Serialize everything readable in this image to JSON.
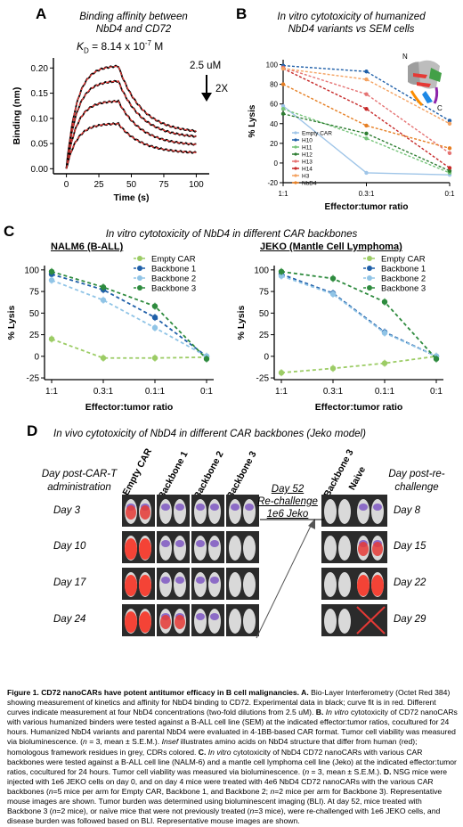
{
  "panelA": {
    "label": "A",
    "title_line1": "Binding affinity between",
    "title_line2": "NbD4 and CD72",
    "kd_text": "K",
    "kd_sub": "D",
    "kd_value": " = 8.14 x 10",
    "kd_exp": "-7",
    "kd_unit": " M",
    "conc_top": "2.5 uM",
    "conc_dil": "2X",
    "colors": {
      "data": "#000000",
      "fit": "#e53935"
    }
  },
  "panelB": {
    "label": "B",
    "title_line1": "In vitro cytotoxicity of humanized",
    "title_line2": "NbD4 variants vs SEM cells",
    "inset_n": "N",
    "inset_c": "C"
  },
  "panelC": {
    "label": "C",
    "title": "In vitro cytotoxicity of NbD4 in different CAR backbones",
    "left_subtitle": "NALM6 (B-ALL)",
    "right_subtitle": "JEKO (Mantle Cell Lymphoma)"
  },
  "panelD": {
    "label": "D",
    "title": "In vivo cytotoxicity of NbD4 in different CAR backbones (Jeko model)",
    "left_header_line1": "Day post-CAR-T",
    "left_header_line2": "administration",
    "right_header_line1": "Day post-re-",
    "right_header_line2": "challenge",
    "columns": [
      "Empty CAR",
      "Backbone 1",
      "Backbone 2",
      "Backbone 3"
    ],
    "rechallenge_columns": [
      "Backbone 3",
      "Naive"
    ],
    "days": [
      "Day 3",
      "Day 10",
      "Day 17",
      "Day 24"
    ],
    "rechallenge_days": [
      "Day 8",
      "Day 15",
      "Day 22",
      "Day 29"
    ],
    "arrow_line1": "Day 52",
    "arrow_line2": "Re-challenge",
    "arrow_line3": "1e6 Jeko"
  },
  "chart_data": [
    {
      "type": "line",
      "panel": "A",
      "xlabel": "Time (s)",
      "ylabel": "Binding (nm)",
      "xlim": [
        -10,
        110
      ],
      "ylim": [
        -0.01,
        0.22
      ],
      "xticks": [
        0,
        25,
        50,
        75,
        100
      ],
      "yticks": [
        0.0,
        0.05,
        0.1,
        0.15,
        0.2
      ],
      "yticklabels": [
        "0.00",
        "0.05",
        "0.10",
        "0.15",
        "0.20"
      ],
      "association_end": 40,
      "series": [
        {
          "plateau": 0.205,
          "end": 0.07
        },
        {
          "plateau": 0.175,
          "end": 0.06
        },
        {
          "plateau": 0.135,
          "end": 0.045
        },
        {
          "plateau": 0.09,
          "end": 0.03
        }
      ]
    },
    {
      "type": "line",
      "panel": "B",
      "xlabel": "Effector:tumor ratio",
      "ylabel": "% Lysis",
      "categories": [
        "1:1",
        "0.3:1",
        "0:1"
      ],
      "yticks": [
        -20,
        0,
        20,
        40,
        60,
        80,
        100
      ],
      "ylim": [
        -20,
        105
      ],
      "series": [
        {
          "name": "Empty CAR",
          "color": "#9fc5e8",
          "values": [
            58,
            -10,
            -12
          ]
        },
        {
          "name": "H10",
          "color": "#1f5fa8",
          "values": [
            99,
            93,
            43
          ]
        },
        {
          "name": "H11",
          "color": "#76c47a",
          "values": [
            55,
            25,
            -10
          ]
        },
        {
          "name": "H12",
          "color": "#2e7d32",
          "values": [
            50,
            30,
            -8
          ]
        },
        {
          "name": "H13",
          "color": "#e57373",
          "values": [
            97,
            70,
            10
          ]
        },
        {
          "name": "H14",
          "color": "#c62828",
          "values": [
            96,
            55,
            -5
          ]
        },
        {
          "name": "H3",
          "color": "#f4a261",
          "values": [
            96,
            85,
            40
          ]
        },
        {
          "name": "NbD4",
          "color": "#e67e22",
          "values": [
            80,
            38,
            15
          ]
        }
      ]
    },
    {
      "type": "line",
      "panel": "C-left",
      "xlabel": "Effector:tumor ratio",
      "ylabel": "% Lysis",
      "categories": [
        "1:1",
        "0.3:1",
        "0.1:1",
        "0:1"
      ],
      "yticks": [
        -25,
        0,
        25,
        50,
        75,
        100
      ],
      "ylim": [
        -27,
        105
      ],
      "series": [
        {
          "name": "Empty CAR",
          "color": "#9ccc65",
          "values": [
            20,
            -2,
            -2,
            -1
          ]
        },
        {
          "name": "Backbone 1",
          "color": "#1f5fa8",
          "values": [
            95,
            77,
            45,
            0
          ]
        },
        {
          "name": "Backbone 2",
          "color": "#90c4e6",
          "values": [
            88,
            65,
            33,
            0
          ]
        },
        {
          "name": "Backbone 3",
          "color": "#2e8b3e",
          "values": [
            98,
            80,
            58,
            -3
          ]
        }
      ]
    },
    {
      "type": "line",
      "panel": "C-right",
      "xlabel": "Effector:tumor ratio",
      "ylabel": "% Lysis",
      "categories": [
        "1:1",
        "0.3:1",
        "0.1:1",
        "0:1"
      ],
      "yticks": [
        -25,
        0,
        25,
        50,
        75,
        100
      ],
      "ylim": [
        -27,
        105
      ],
      "series": [
        {
          "name": "Empty CAR",
          "color": "#9ccc65",
          "values": [
            -19,
            -14,
            -8,
            0
          ]
        },
        {
          "name": "Backbone 1",
          "color": "#1f5fa8",
          "values": [
            95,
            73,
            28,
            0
          ]
        },
        {
          "name": "Backbone 2",
          "color": "#90c4e6",
          "values": [
            93,
            72,
            27,
            0
          ]
        },
        {
          "name": "Backbone 3",
          "color": "#2e8b3e",
          "values": [
            98,
            90,
            63,
            -3
          ]
        }
      ]
    }
  ],
  "caption": {
    "title": "Figure 1. CD72 nanoCARs have potent antitumor efficacy in B cell malignancies.",
    "a_lbl": " A. ",
    "a_text": "Bio-Layer Interferometry (Octet Red 384) showing measurement of kinetics and affinity for NbD4 binding to CD72. Experimental data in black; curve fit is in red. Different curves indicate measurement at four NbD4 concentrations (two-fold dilutions from 2.5 uM). ",
    "b_lbl": "B. ",
    "b_italic": "In vitro",
    "b_text": " cytotoxicity of CD72 nanoCARs with various humanized binders were tested against a B-ALL cell line (SEM) at the indicated effector:tumor ratios, cocultured for 24 hours. Humanized NbD4 variants and parental NbD4 were evaluated in 4-1BB-based CAR format. Tumor cell viability was measured via bioluminescence. (",
    "b_n": "n",
    "b_text2": " = 3, mean ± S.E.M.). ",
    "b_inset": "Insef",
    "b_text3": " illustrates amino acids on NbD4 structure that differ from human (red); homologous framework residues in grey, CDRs colored. ",
    "c_lbl": "C. ",
    "c_italic": "In vitro",
    "c_text": " cytotoxicity of NbD4 CD72 nanoCARs with various CAR backbones were tested against a B-ALL cell line (NALM-6) and a mantle cell lymphoma cell line (Jeko) at the indicated effector:tumor ratios, cocultured for 24 hours. Tumor cell viability was measured via bioluminescence. (",
    "c_n": "n",
    "c_text2": " = 3, mean ± S.E.M.). ",
    "d_lbl": "D. ",
    "d_text": "NSG mice were injected with 1e6 JEKO cells on day 0, and on day 4 mice were treated with 4e6 NbD4 CD72 nanoCARs with the various CAR backbones (",
    "d_n1": "n",
    "d_text2": "=5 mice per arm for Empty CAR, Backbone 1, and Backbone 2; ",
    "d_n2": "n",
    "d_text3": "=2 mice per arm for Backbone 3). Representative mouse images are shown. Tumor burden was determined using bioluminescent imaging (BLI). At day 52, mice treated with Backbone 3 (",
    "d_n3": "n",
    "d_text4": "=2 mice), or naïve mice that were not previously treated (",
    "d_n4": "n",
    "d_text5": "=3 mice), were re-challenged with 1e6 JEKO cells, and disease burden was followed based on BLI. Representative mouse images are shown."
  }
}
